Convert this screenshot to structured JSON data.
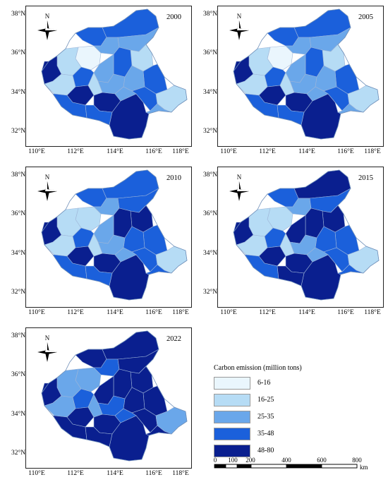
{
  "axes": {
    "lat_labels": [
      "38°N",
      "36°N",
      "34°N",
      "32°N"
    ],
    "lon_labels": [
      "110°E",
      "112°E",
      "114°E",
      "116°E",
      "118°E"
    ]
  },
  "panels": [
    {
      "year": "2000",
      "classes": [
        0,
        3,
        3,
        2,
        2,
        1,
        3,
        3,
        2,
        1,
        4,
        3,
        2,
        2,
        1,
        4,
        3,
        4,
        4,
        1,
        1,
        3,
        3,
        2,
        2
      ]
    },
    {
      "year": "2005",
      "classes": [
        0,
        3,
        3,
        2,
        2,
        1,
        3,
        3,
        2,
        1,
        4,
        3,
        2,
        2,
        1,
        4,
        3,
        4,
        4,
        1,
        1,
        3,
        3,
        2,
        2
      ]
    },
    {
      "year": "2010",
      "classes": [
        1,
        3,
        3,
        2,
        3,
        4,
        4,
        3,
        2,
        1,
        4,
        3,
        3,
        2,
        1,
        4,
        3,
        4,
        4,
        1,
        1,
        3,
        3,
        2,
        3
      ]
    },
    {
      "year": "2015",
      "classes": [
        1,
        3,
        4,
        2,
        3,
        4,
        4,
        3,
        4,
        1,
        4,
        3,
        3,
        2,
        1,
        4,
        3,
        4,
        4,
        1,
        1,
        3,
        4,
        2,
        3
      ]
    },
    {
      "year": "2022",
      "classes": [
        2,
        4,
        4,
        3,
        4,
        4,
        4,
        4,
        4,
        2,
        4,
        3,
        4,
        3,
        2,
        4,
        4,
        4,
        4,
        2,
        2,
        4,
        4,
        3,
        4
      ]
    }
  ],
  "north_label": "N",
  "legend": {
    "title": "Carbon emission (million tons)",
    "classes": [
      {
        "label": "6-16",
        "color": "#eaf6fd"
      },
      {
        "label": "16-25",
        "color": "#b6dcf5"
      },
      {
        "label": "25-35",
        "color": "#6aa7ea"
      },
      {
        "label": "35-48",
        "color": "#1b60db"
      },
      {
        "label": "48-80",
        "color": "#0a1f8f"
      }
    ]
  },
  "scale_bar": {
    "labels": [
      "0",
      "100",
      "200",
      "400",
      "600",
      "800"
    ],
    "unit": "km"
  }
}
